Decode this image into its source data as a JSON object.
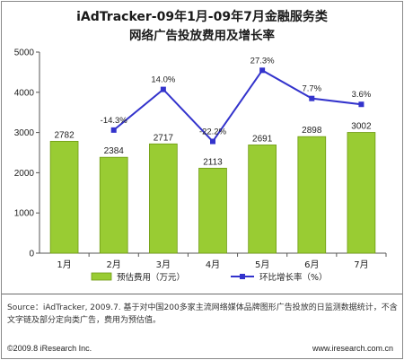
{
  "chart_data": {
    "type": "bar+line",
    "title": "iAdTracker-09年1月-09年7月金融服务类",
    "subtitle": "网络广告投放费用及增长率",
    "categories": [
      "1月",
      "2月",
      "3月",
      "4月",
      "5月",
      "6月",
      "7月"
    ],
    "series": [
      {
        "name": "预估费用（万元）",
        "kind": "bar",
        "values": [
          2782,
          2384,
          2717,
          2113,
          2691,
          2898,
          3002
        ],
        "labels": [
          "2782",
          "2384",
          "2717",
          "2113",
          "2691",
          "2898",
          "3002"
        ]
      },
      {
        "name": "环比增长率（%）",
        "kind": "line",
        "values": [
          null,
          -14.3,
          14.0,
          -22.2,
          27.3,
          7.7,
          3.6
        ],
        "labels": [
          "",
          "-14.3%",
          "14.0%",
          "-22.2%",
          "27.3%",
          "7.7%",
          "3.6%"
        ]
      }
    ],
    "y_axis": {
      "min": 0,
      "max": 5000,
      "ticks": [
        "0",
        "1000",
        "2000",
        "3000",
        "4000",
        "5000"
      ]
    },
    "line_axis": {
      "min": -100,
      "max": 40
    },
    "grid": false,
    "legend_position": "bottom",
    "colors": {
      "bar": "#99cc33",
      "bar_edge": "#6e9a12",
      "line": "#3333cc"
    }
  },
  "source_text": "Source：iAdTracker, 2009.7. 基于对中国200多家主流网络媒体品牌图形广告投放的日监测数据统计，不含文字链及部分定向类广告，费用为预估值。",
  "footer": {
    "copyright": "©2009.8 iResearch Inc.",
    "website": "www.iresearch.com.cn"
  }
}
